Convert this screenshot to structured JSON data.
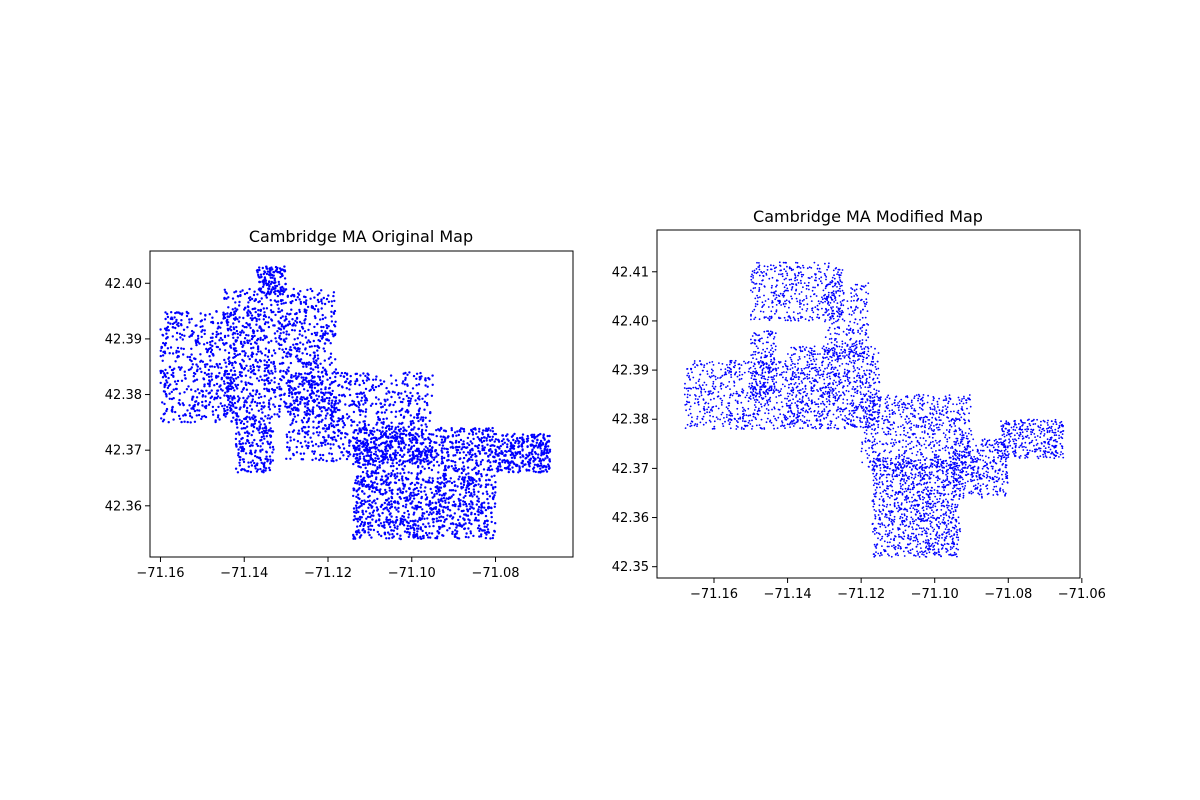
{
  "chart_data": [
    {
      "type": "scatter",
      "title": "Cambridge MA Original Map",
      "xlabel": "",
      "ylabel": "",
      "xlim": [
        -71.1625,
        -71.0615
      ],
      "ylim": [
        42.3508,
        42.4058
      ],
      "xticks": [
        -71.16,
        -71.14,
        -71.12,
        -71.1,
        -71.08
      ],
      "xtick_labels": [
        "−71.16",
        "−71.14",
        "−71.12",
        "−71.10",
        "−71.08"
      ],
      "yticks": [
        42.36,
        42.37,
        42.38,
        42.39,
        42.4
      ],
      "ytick_labels": [
        "42.36",
        "42.37",
        "42.38",
        "42.39",
        "42.40"
      ],
      "grid": false,
      "marker_color": "#0000ff",
      "density": 7,
      "regions": [
        {
          "x0": -71.16,
          "x1": -71.142,
          "y0": 42.375,
          "y1": 42.395,
          "n": 70
        },
        {
          "x0": -71.145,
          "x1": -71.118,
          "y0": 42.376,
          "y1": 42.399,
          "n": 140
        },
        {
          "x0": -71.137,
          "x1": -71.13,
          "y0": 42.398,
          "y1": 42.403,
          "n": 20
        },
        {
          "x0": -71.142,
          "x1": -71.133,
          "y0": 42.366,
          "y1": 42.376,
          "n": 30
        },
        {
          "x0": -71.13,
          "x1": -71.095,
          "y0": 42.368,
          "y1": 42.384,
          "n": 110
        },
        {
          "x0": -71.114,
          "x1": -71.08,
          "y0": 42.354,
          "y1": 42.374,
          "n": 220
        },
        {
          "x0": -71.08,
          "x1": -71.067,
          "y0": 42.366,
          "y1": 42.373,
          "n": 45
        }
      ]
    },
    {
      "type": "scatter",
      "title": "Cambridge MA Modified Map",
      "xlabel": "",
      "ylabel": "",
      "xlim": [
        -71.1755,
        -71.0605
      ],
      "ylim": [
        42.3477,
        42.4185
      ],
      "xticks": [
        -71.16,
        -71.14,
        -71.12,
        -71.1,
        -71.08,
        -71.06
      ],
      "xtick_labels": [
        "−71.16",
        "−71.14",
        "−71.12",
        "−71.10",
        "−71.08",
        "−71.06"
      ],
      "yticks": [
        42.35,
        42.36,
        42.37,
        42.38,
        42.39,
        42.4,
        42.41
      ],
      "ytick_labels": [
        "42.35",
        "42.36",
        "42.37",
        "42.38",
        "42.39",
        "42.40",
        "42.41"
      ],
      "grid": false,
      "marker_color": "#0000ff",
      "density": 7,
      "regions": [
        {
          "x0": -71.168,
          "x1": -71.14,
          "y0": 42.378,
          "y1": 42.392,
          "n": 80
        },
        {
          "x0": -71.15,
          "x1": -71.143,
          "y0": 42.385,
          "y1": 42.398,
          "n": 25
        },
        {
          "x0": -71.15,
          "x1": -71.125,
          "y0": 42.4,
          "y1": 42.412,
          "n": 60
        },
        {
          "x0": -71.14,
          "x1": -71.115,
          "y0": 42.378,
          "y1": 42.395,
          "n": 120
        },
        {
          "x0": -71.13,
          "x1": -71.118,
          "y0": 42.392,
          "y1": 42.408,
          "n": 35
        },
        {
          "x0": -71.12,
          "x1": -71.09,
          "y0": 42.37,
          "y1": 42.385,
          "n": 100
        },
        {
          "x0": -71.117,
          "x1": -71.093,
          "y0": 42.352,
          "y1": 42.372,
          "n": 150
        },
        {
          "x0": -71.095,
          "x1": -71.08,
          "y0": 42.364,
          "y1": 42.376,
          "n": 50
        },
        {
          "x0": -71.082,
          "x1": -71.065,
          "y0": 42.372,
          "y1": 42.38,
          "n": 45
        }
      ]
    }
  ]
}
